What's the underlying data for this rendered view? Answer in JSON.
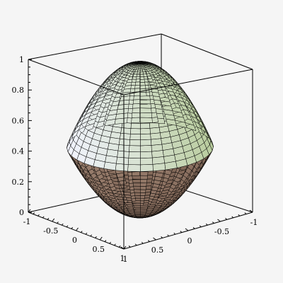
{
  "chart_data": {
    "type": "surface3d",
    "title": "",
    "xlabel": "",
    "ylabel": "",
    "zlabel": "",
    "xlim": [
      -1,
      1
    ],
    "ylim": [
      -1,
      1
    ],
    "zlim": [
      0,
      1
    ],
    "x_ticks": [
      "-1",
      "-0.5",
      "0",
      "0.5",
      "1"
    ],
    "y_ticks": [
      "1",
      "0.5",
      "0",
      "-0.5",
      "-1"
    ],
    "z_ticks": [
      "0",
      "0.2",
      "0.4",
      "0.6",
      "0.8",
      "1"
    ],
    "surface": {
      "grid_radial_steps": 28,
      "grid_angular_steps": 36,
      "rim_height": 0.45,
      "top_height": 1.0,
      "bottom_height": 0.0
    },
    "colors": {
      "upper_light": "#f2f4ff",
      "upper_green": "#b8cc9c",
      "lower_brown": "#9a7f6e",
      "lower_dark": "#6f5648",
      "mesh_line": "#000000",
      "box": "#000000",
      "background": "#f5f5f5"
    }
  }
}
